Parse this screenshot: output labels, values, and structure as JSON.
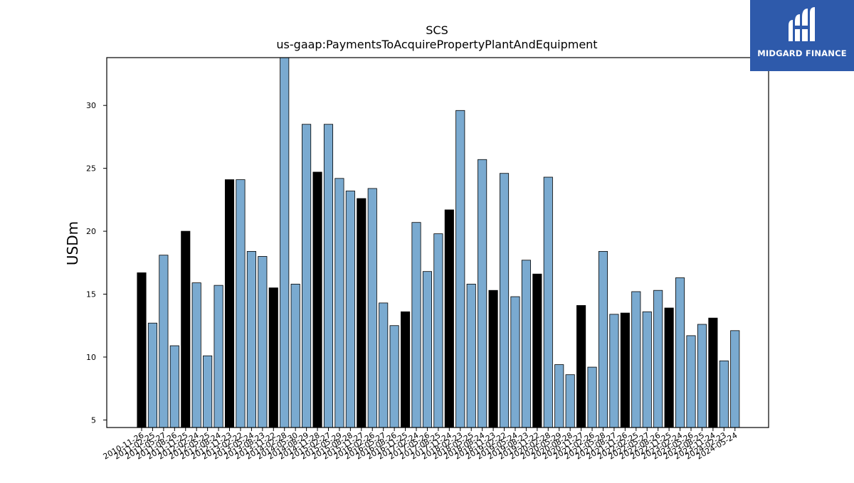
{
  "chart_data": {
    "type": "bar",
    "title": "SCS",
    "subtitle": "us-gaap:PaymentsToAcquirePropertyPlantAndEquipment",
    "xlabel": "",
    "ylabel": "USDm",
    "ylim": [
      4.4,
      33.8
    ],
    "yticks": [
      5,
      10,
      15,
      20,
      25,
      30
    ],
    "grid": false,
    "colors": {
      "annual": "#000000",
      "quarterly": "#7aaad0",
      "edge": "#000000"
    },
    "categories": [
      "2010-11-26",
      "2011-02-25",
      "2011-05-27",
      "2011-08-26",
      "2011-11-25",
      "2012-02-24",
      "2012-05-25",
      "2012-08-24",
      "2012-11-23",
      "2013-02-22",
      "2013-05-24",
      "2013-08-23",
      "2013-11-22",
      "2014-02-28",
      "2014-05-30",
      "2014-08-29",
      "2014-11-28",
      "2015-02-27",
      "2015-05-29",
      "2015-08-28",
      "2015-11-27",
      "2016-02-26",
      "2016-05-27",
      "2016-08-26",
      "2016-11-25",
      "2017-02-24",
      "2017-05-26",
      "2017-08-25",
      "2017-11-24",
      "2018-02-23",
      "2018-05-25",
      "2018-08-24",
      "2018-11-23",
      "2019-02-22",
      "2019-05-24",
      "2019-08-23",
      "2019-11-22",
      "2020-02-28",
      "2020-05-29",
      "2020-08-28",
      "2020-11-27",
      "2021-02-26",
      "2021-05-28",
      "2021-08-27",
      "2021-11-26",
      "2022-02-25",
      "2022-05-27",
      "2022-08-26",
      "2022-11-25",
      "2023-02-24",
      "2023-05-26",
      "2023-08-25",
      "2023-11-24",
      "2024-02-23",
      "2024-05-24"
    ],
    "values": [
      16.7,
      12.7,
      18.1,
      10.9,
      20.0,
      15.9,
      10.1,
      15.7,
      24.1,
      24.1,
      18.4,
      18.0,
      15.5,
      33.8,
      15.8,
      28.5,
      24.7,
      28.5,
      24.2,
      23.2,
      22.6,
      23.4,
      14.3,
      12.5,
      13.6,
      20.7,
      16.8,
      19.8,
      21.7,
      29.6,
      15.8,
      25.7,
      15.3,
      24.6,
      14.8,
      17.7,
      16.6,
      24.3,
      9.4,
      8.6,
      14.1,
      9.2,
      18.4,
      13.4,
      13.5,
      15.2,
      13.6,
      15.3,
      13.9,
      16.3,
      11.7,
      12.6,
      13.1,
      9.7,
      12.1
    ],
    "highlight": [
      true,
      false,
      false,
      false,
      true,
      false,
      false,
      false,
      true,
      false,
      false,
      false,
      true,
      false,
      false,
      false,
      true,
      false,
      false,
      false,
      true,
      false,
      false,
      false,
      true,
      false,
      false,
      false,
      true,
      false,
      false,
      false,
      true,
      false,
      false,
      false,
      true,
      false,
      false,
      false,
      true,
      false,
      false,
      false,
      true,
      false,
      false,
      false,
      true,
      false,
      false,
      false,
      true,
      false,
      false
    ]
  },
  "logo": {
    "text": "MIDGARD FINANCE",
    "icon": "midgard-logo-icon"
  }
}
